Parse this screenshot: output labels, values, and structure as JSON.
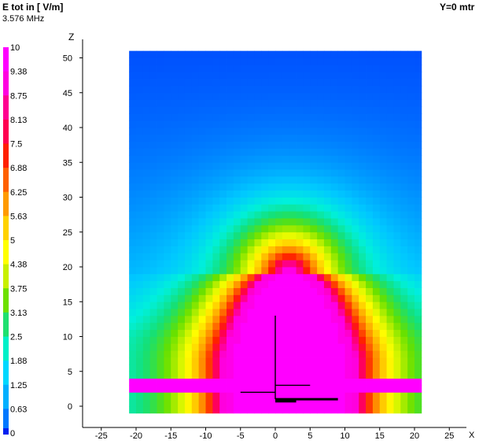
{
  "header": {
    "title": "E tot in [ V/m]",
    "frequency": "3.576 MHz",
    "plane": "Y=0 mtr"
  },
  "chart_data": {
    "type": "heatmap",
    "title": "E tot in [ V/m]",
    "subtitle": "3.576 MHz",
    "xlabel": "X",
    "ylabel": "Z",
    "xlim": [
      -29,
      29
    ],
    "ylim": [
      -3,
      54
    ],
    "x_ticks": [
      -25,
      -20,
      -15,
      -10,
      -5,
      0,
      5,
      10,
      15,
      20,
      25
    ],
    "y_ticks": [
      0,
      5,
      10,
      15,
      20,
      25,
      30,
      35,
      40,
      45,
      50
    ],
    "grid": false,
    "legend_position": "left",
    "legend": {
      "labels": [
        "10",
        "9.38",
        "8.75",
        "8.13",
        "7.5",
        "6.88",
        "6.25",
        "5.63",
        "5",
        "4.38",
        "3.75",
        "3.13",
        "2.5",
        "1.88",
        "1.25",
        "0.63",
        "0"
      ],
      "colors": [
        "#ff00ff",
        "#ff00e0",
        "#ff0090",
        "#ff0050",
        "#ff2000",
        "#ff6000",
        "#ff9a00",
        "#ffd200",
        "#ffff00",
        "#c8f000",
        "#6ee000",
        "#20e070",
        "#00f0c8",
        "#00d8ff",
        "#00b0ff",
        "#0078ff",
        "#0020f0"
      ]
    },
    "field_region": {
      "x": [
        -21,
        21
      ],
      "z": [
        -1,
        51
      ]
    },
    "grid_step": 1,
    "ground_band": {
      "z": [
        2,
        4
      ],
      "value": 10
    },
    "core": {
      "cx": 2,
      "z_top": 19,
      "half_width_min": 7,
      "half_width_max": 12,
      "value": 10
    },
    "antenna": [
      {
        "x1": 0,
        "z1": 13,
        "x2": 0,
        "z2": 1
      },
      {
        "x1": 0,
        "z1": 3,
        "x2": 5,
        "z2": 3
      },
      {
        "x1": -5,
        "z1": 2,
        "x2": 0,
        "z2": 2
      },
      {
        "x1": 0,
        "z1": 1,
        "x2": 9,
        "z2": 1
      },
      {
        "x1": 0,
        "z1": 0.7,
        "x2": 3,
        "z2": 0.7
      }
    ]
  }
}
